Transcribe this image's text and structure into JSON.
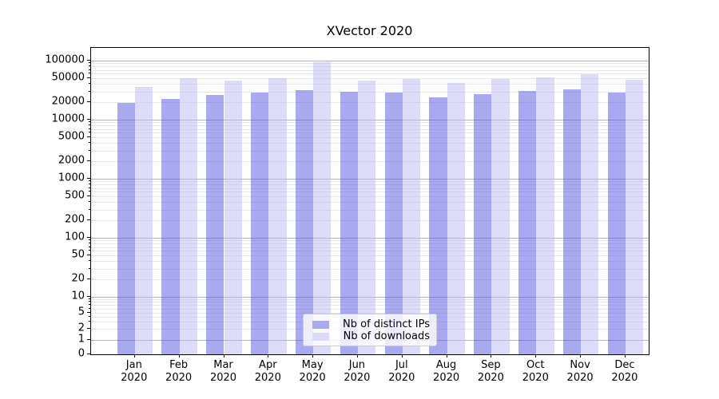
{
  "title": "XVector 2020",
  "legend": {
    "items": [
      {
        "label": "Nb of distinct IPs",
        "color": "#a9a9f0",
        "fill": "rgba(83,83,225,0.5)"
      },
      {
        "label": "Nb of downloads",
        "color": "#dcdcf8",
        "fill": "rgba(185,185,241,0.5)"
      }
    ]
  },
  "chart_data": {
    "type": "bar",
    "title": "XVector 2020",
    "categories": [
      "Jan 2020",
      "Feb 2020",
      "Mar 2020",
      "Apr 2020",
      "May 2020",
      "Jun 2020",
      "Jul 2020",
      "Aug 2020",
      "Sep 2020",
      "Oct 2020",
      "Nov 2020",
      "Dec 2020"
    ],
    "series": [
      {
        "name": "Nb of distinct IPs",
        "color": "#a9a9f0",
        "values": [
          19200,
          22800,
          26600,
          28800,
          32100,
          29700,
          28800,
          24300,
          27100,
          31100,
          32600,
          29300
        ]
      },
      {
        "name": "Nb of downloads",
        "color": "#dcdcf8",
        "values": [
          35800,
          50400,
          45900,
          51200,
          94000,
          46700,
          48900,
          41900,
          48900,
          52900,
          59800,
          47400
        ]
      }
    ],
    "xlabel": "",
    "ylabel": "",
    "yscale": "symlog",
    "ylim": [
      0,
      150000
    ],
    "yticks": [
      100000,
      50000,
      20000,
      10000,
      5000,
      2000,
      1000,
      500,
      200,
      100,
      50,
      20,
      10,
      5,
      2,
      1,
      0
    ],
    "ytick_labels": [
      "100000",
      "50000",
      "20000",
      "10000",
      "5000",
      "2000",
      "1000",
      "500",
      "200",
      "100",
      "50",
      "20",
      "10",
      "5",
      "2",
      "1",
      "0"
    ],
    "grid": "both",
    "legend_position": "lower center"
  }
}
